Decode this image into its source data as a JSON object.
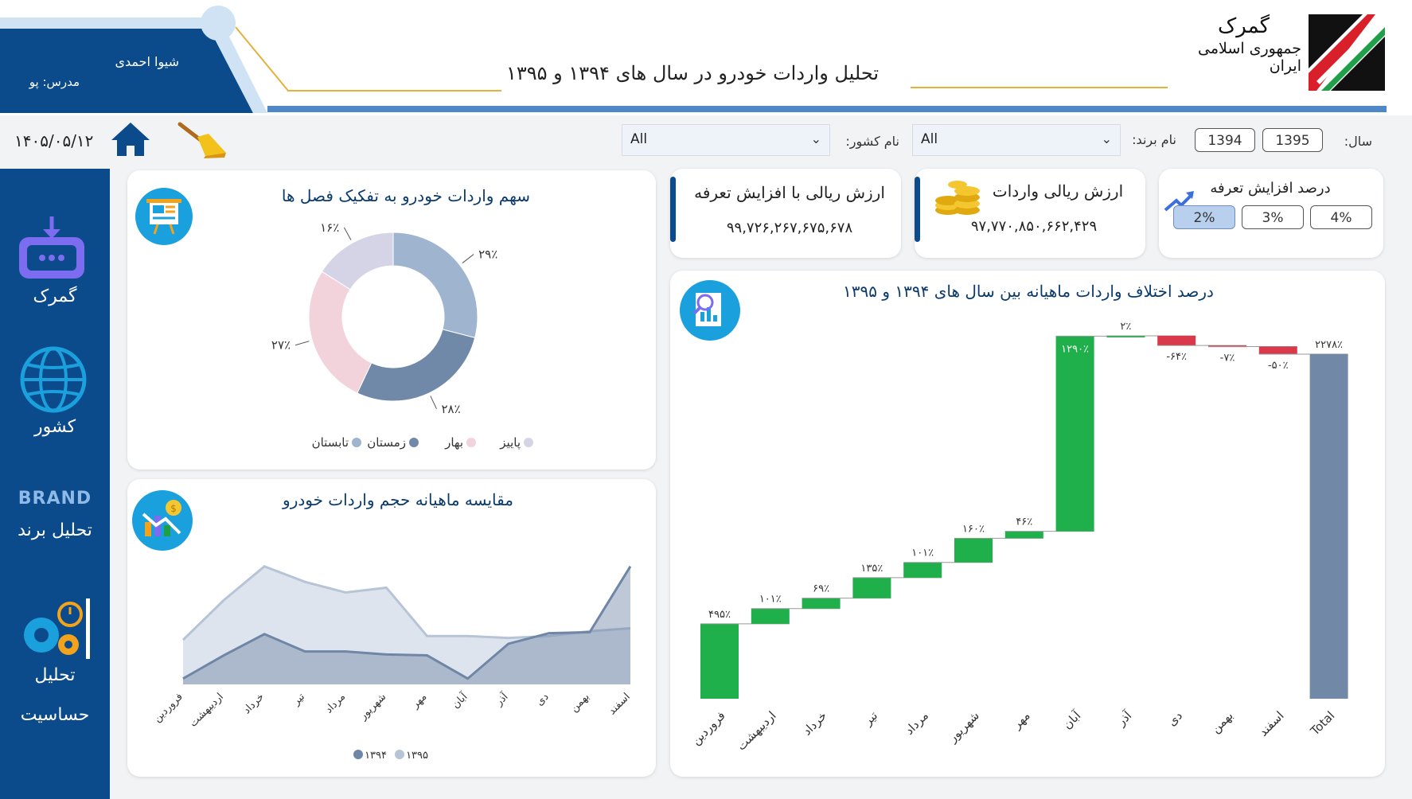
{
  "header": {
    "title": "تحلیل واردات خودرو در سال های ۱۳۹۴ و ۱۳۹۵",
    "logo_line1": "گمرک",
    "logo_line2": "جمهوری اسلامی ایران",
    "author_name": "شیوا احمدی",
    "instructor": "مدرس: پو",
    "date": "۱۴۰۵/۰۵/۱۲",
    "accent_color": "#0b4a8b"
  },
  "filters": {
    "year_label": "سال:",
    "years": [
      "1395",
      "1394"
    ],
    "brand_label": "نام برند:",
    "brand_value": "All",
    "country_label": "نام کشور:",
    "country_value": "All"
  },
  "sidebar": {
    "items": [
      {
        "label": "گمرک",
        "icon": "customs-icon"
      },
      {
        "label": "کشور",
        "icon": "globe-icon"
      },
      {
        "label": "تحلیل برند",
        "icon": "brand-icon",
        "badge": "BRAND"
      },
      {
        "label": "تحلیل",
        "label2": "حساسیت",
        "icon": "gears-icon"
      }
    ]
  },
  "tariff": {
    "title": "درصد افزایش تعرفه",
    "options": [
      "2%",
      "3%",
      "4%"
    ],
    "selected": "2%"
  },
  "kpi_import_value": {
    "title": "ارزش ریالی واردات",
    "value": "۹۷,۷۷۰,۸۵۰,۶۶۲,۴۲۹"
  },
  "kpi_tariff_value": {
    "title": "ارزش ریالی با افزایش تعرفه",
    "value": "۹۹,۷۲۶,۲۶۷,۶۷۵,۶۷۸"
  },
  "chart_data": [
    {
      "type": "pie",
      "title": "سهم واردات خودرو به تفکیک فصل ها",
      "categories": [
        "تابستان",
        "زمستان",
        "بهار",
        "پاییز"
      ],
      "values": [
        29,
        28,
        27,
        16
      ],
      "labels": [
        "۲۹٪",
        "۲۸٪",
        "۲۷٪",
        "۱۶٪"
      ],
      "colors": [
        "#9fb4cf",
        "#7089a8",
        "#f2d3dc",
        "#d4d4e6"
      ],
      "legend_position": "bottom"
    },
    {
      "type": "area",
      "title": "مقایسه ماهیانه حجم واردات خودرو",
      "categories": [
        "فروردین",
        "اردیبهشت",
        "خرداد",
        "تیر",
        "مرداد",
        "شهریور",
        "مهر",
        "آبان",
        "آذر",
        "دی",
        "بهمن",
        "اسفند"
      ],
      "series": [
        {
          "name": "۱۳۹۴",
          "values": [
            6,
            30,
            52,
            34,
            34,
            31,
            30,
            6,
            42,
            53,
            54,
            122
          ],
          "color": "#6f86a6"
        },
        {
          "name": "۱۳۹۵",
          "values": [
            46,
            87,
            122,
            106,
            95,
            100,
            50,
            50,
            48,
            50,
            55,
            58
          ],
          "color": "#b6c4d6"
        }
      ],
      "ylim": [
        0,
        130
      ],
      "legend_position": "bottom"
    },
    {
      "type": "bar",
      "subtype": "waterfall",
      "title": "درصد اختلاف واردات ماهیانه بین سال های ۱۳۹۴ و ۱۳۹۵",
      "categories": [
        "فروردین",
        "اردیبهشت",
        "خرداد",
        "تیر",
        "مرداد",
        "شهریور",
        "مهر",
        "آبان",
        "آذر",
        "دی",
        "بهمن",
        "اسفند",
        "Total"
      ],
      "values": [
        495,
        101,
        69,
        135,
        101,
        160,
        46,
        1290,
        2,
        -64,
        -7,
        -50,
        2278
      ],
      "labels": [
        "۴۹۵٪",
        "۱۰۱٪",
        "۶۹٪",
        "۱۳۵٪",
        "۱۰۱٪",
        "۱۶۰٪",
        "۴۶٪",
        "۱۲۹۰٪",
        "۲٪",
        "-۶۴٪",
        "-۷٪",
        "-۵۰٪",
        "۲۲۷۸٪"
      ],
      "colors": {
        "increase": "#20b04b",
        "decrease": "#d9394a",
        "total": "#7189a6"
      },
      "ylim": [
        0,
        2420
      ]
    }
  ]
}
